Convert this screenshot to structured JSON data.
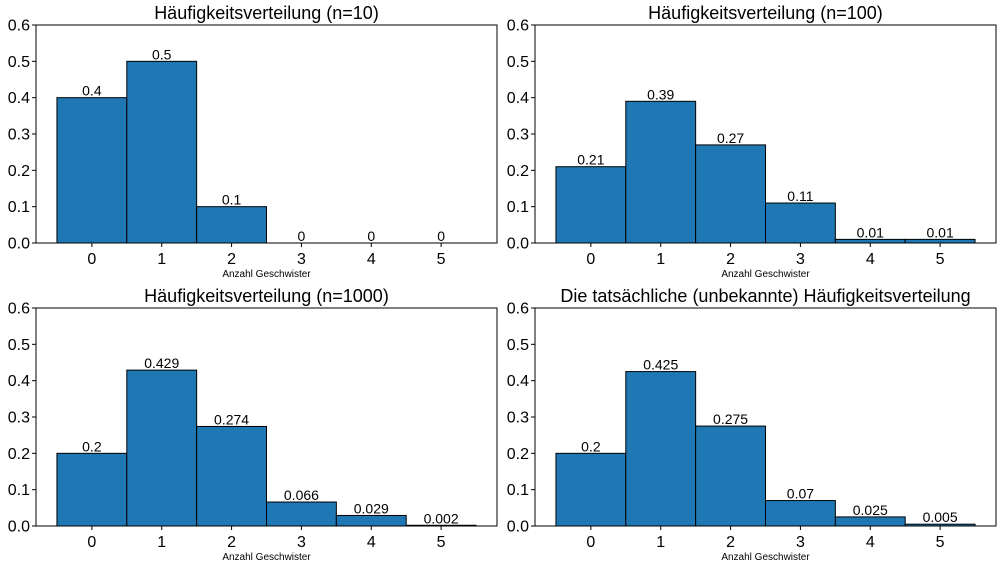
{
  "chart_data": [
    {
      "type": "bar",
      "title": "Häufigkeitsverteilung (n=10)",
      "xlabel": "Anzahl Geschwister",
      "ylabel": "",
      "categories": [
        "0",
        "1",
        "2",
        "3",
        "4",
        "5"
      ],
      "values": [
        0.4,
        0.5,
        0.1,
        0,
        0,
        0
      ],
      "labels": [
        "0.4",
        "0.5",
        "0.1",
        "0",
        "0",
        "0"
      ],
      "ylim": [
        0,
        0.6
      ],
      "yticks": [
        "0.0",
        "0.1",
        "0.2",
        "0.3",
        "0.4",
        "0.5",
        "0.6"
      ],
      "grid": false,
      "bar_color": "#1f77b4",
      "edge_color": "#000000"
    },
    {
      "type": "bar",
      "title": "Häufigkeitsverteilung (n=100)",
      "xlabel": "Anzahl Geschwister",
      "ylabel": "",
      "categories": [
        "0",
        "1",
        "2",
        "3",
        "4",
        "5"
      ],
      "values": [
        0.21,
        0.39,
        0.27,
        0.11,
        0.01,
        0.01
      ],
      "labels": [
        "0.21",
        "0.39",
        "0.27",
        "0.11",
        "0.01",
        "0.01"
      ],
      "ylim": [
        0,
        0.6
      ],
      "yticks": [
        "0.0",
        "0.1",
        "0.2",
        "0.3",
        "0.4",
        "0.5",
        "0.6"
      ],
      "grid": false,
      "bar_color": "#1f77b4",
      "edge_color": "#000000"
    },
    {
      "type": "bar",
      "title": "Häufigkeitsverteilung (n=1000)",
      "xlabel": "Anzahl Geschwister",
      "ylabel": "",
      "categories": [
        "0",
        "1",
        "2",
        "3",
        "4",
        "5"
      ],
      "values": [
        0.2,
        0.429,
        0.274,
        0.066,
        0.029,
        0.002
      ],
      "labels": [
        "0.2",
        "0.429",
        "0.274",
        "0.066",
        "0.029",
        "0.002"
      ],
      "ylim": [
        0,
        0.6
      ],
      "yticks": [
        "0.0",
        "0.1",
        "0.2",
        "0.3",
        "0.4",
        "0.5",
        "0.6"
      ],
      "grid": false,
      "bar_color": "#1f77b4",
      "edge_color": "#000000"
    },
    {
      "type": "bar",
      "title": "Die tatsächliche (unbekannte) Häufigkeitsverteilung",
      "xlabel": "Anzahl Geschwister",
      "ylabel": "",
      "categories": [
        "0",
        "1",
        "2",
        "3",
        "4",
        "5"
      ],
      "values": [
        0.2,
        0.425,
        0.275,
        0.07,
        0.025,
        0.005
      ],
      "labels": [
        "0.2",
        "0.425",
        "0.275",
        "0.07",
        "0.025",
        "0.005"
      ],
      "ylim": [
        0,
        0.6
      ],
      "yticks": [
        "0.0",
        "0.1",
        "0.2",
        "0.3",
        "0.4",
        "0.5",
        "0.6"
      ],
      "grid": false,
      "bar_color": "#1f77b4",
      "edge_color": "#000000"
    }
  ]
}
